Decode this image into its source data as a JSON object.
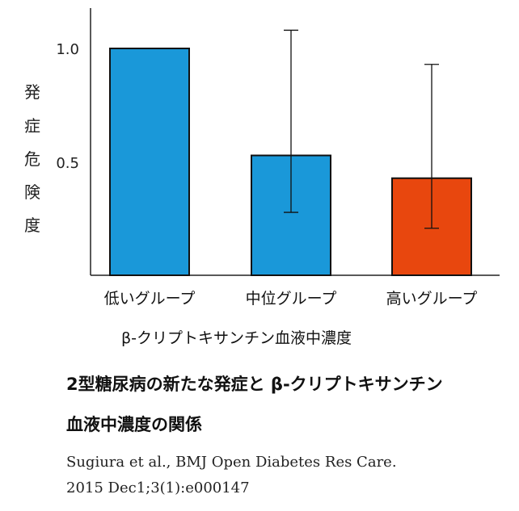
{
  "chart_data": {
    "type": "bar",
    "categories": [
      "低いグループ",
      "中位グループ",
      "高いグループ"
    ],
    "values": [
      1.0,
      0.53,
      0.43
    ],
    "error_bars": [
      {
        "low": null,
        "high": null
      },
      {
        "low": 0.28,
        "high": 1.08
      },
      {
        "low": 0.21,
        "high": 0.93
      }
    ],
    "bar_colors": [
      "#1a98d9",
      "#1a98d9",
      "#e8470e"
    ],
    "ylim": [
      0,
      1.15
    ],
    "yticks": [
      {
        "value": 1.0,
        "label": "1.0"
      },
      {
        "value": 0.5,
        "label": "0.5"
      }
    ],
    "ylabel_chars": [
      "発",
      "症",
      "危",
      "険",
      "度"
    ],
    "xlabel": "β-クリプトキサンチン血液中濃度",
    "grid": false
  },
  "caption": {
    "line1": "2型糖尿病の新たな発症と β-クリプトキサンチン",
    "line2": "血液中濃度の関係"
  },
  "citation": {
    "line1": "Sugiura et al.,  BMJ Open Diabetes Res Care.",
    "line2": "2015 Dec1;3(1):e000147"
  }
}
